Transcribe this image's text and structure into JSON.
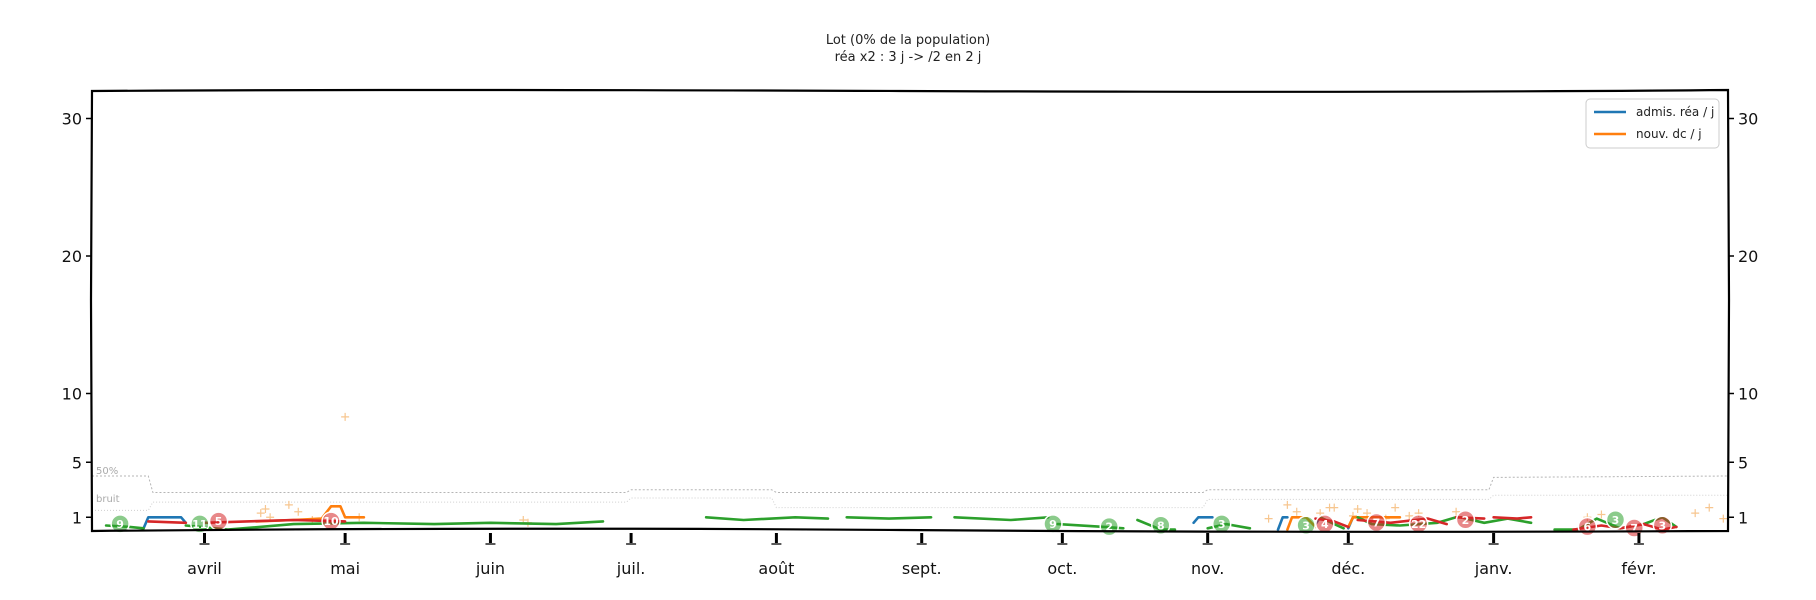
{
  "chart_data": {
    "type": "line",
    "title": "Lot (0% de la population)",
    "subtitle": "réa x2 : 3 j -> /2 en 2 j",
    "ylim": [
      0,
      32
    ],
    "yticks": [
      1,
      5,
      10,
      20,
      30
    ],
    "x_range": [
      "2020-03-08",
      "2021-02-20"
    ],
    "months": [
      {
        "label": "avril",
        "date": "2020-04-01"
      },
      {
        "label": "mai",
        "date": "2020-05-01"
      },
      {
        "label": "juin",
        "date": "2020-06-01"
      },
      {
        "label": "juil.",
        "date": "2020-07-01"
      },
      {
        "label": "août",
        "date": "2020-08-01"
      },
      {
        "label": "sept.",
        "date": "2020-09-01"
      },
      {
        "label": "oct.",
        "date": "2020-10-01"
      },
      {
        "label": "nov.",
        "date": "2020-11-01"
      },
      {
        "label": "déc.",
        "date": "2020-12-01"
      },
      {
        "label": "janv.",
        "date": "2021-01-01"
      },
      {
        "label": "févr.",
        "date": "2021-02-01"
      }
    ],
    "legend_position": "top-right",
    "legend": [
      {
        "label": "admis. réa / j",
        "color": "#1f77b4"
      },
      {
        "label": "nouv. dc / j",
        "color": "#ff7f0e"
      }
    ],
    "reference_labels": {
      "p50": "50%",
      "noise": "bruit"
    },
    "series": [
      {
        "name": "admis. réa / j",
        "color": "#1f77b4",
        "segments": [
          [
            [
              "2020-03-19",
              0.2
            ],
            [
              "2020-03-20",
              1
            ],
            [
              "2020-03-27",
              1
            ],
            [
              "2020-03-28",
              0.6
            ]
          ],
          [
            [
              "2020-10-29",
              0.6
            ],
            [
              "2020-10-30",
              1
            ],
            [
              "2020-11-02",
              1
            ]
          ],
          [
            [
              "2020-11-16",
              0.1
            ],
            [
              "2020-11-17",
              1
            ],
            [
              "2020-11-18",
              1
            ]
          ],
          [
            [
              "2020-11-24",
              0.5
            ],
            [
              "2020-11-25",
              1
            ]
          ],
          [
            [
              "2020-12-01",
              0.2
            ],
            [
              "2020-12-02",
              1
            ]
          ]
        ]
      },
      {
        "name": "nouv. dc / j",
        "color": "#ff7f0e",
        "segments": [
          [
            [
              "2020-04-12",
              0.7
            ],
            [
              "2020-04-20",
              0.8
            ],
            [
              "2020-04-26",
              0.9
            ],
            [
              "2020-04-28",
              1.8
            ],
            [
              "2020-04-30",
              1.8
            ],
            [
              "2020-05-01",
              1
            ],
            [
              "2020-05-05",
              1
            ]
          ],
          [
            [
              "2020-11-18",
              0.1
            ],
            [
              "2020-11-19",
              1
            ],
            [
              "2020-11-22",
              1
            ],
            [
              "2020-11-24",
              0.3
            ]
          ],
          [
            [
              "2020-12-01",
              0.3
            ],
            [
              "2020-12-02",
              1
            ],
            [
              "2020-12-06",
              1
            ],
            [
              "2020-12-12",
              1
            ]
          ]
        ]
      },
      {
        "color": "#2ca02c",
        "segments": [
          [
            [
              "2020-03-11",
              0.4
            ],
            [
              "2020-03-16",
              0.3
            ],
            [
              "2020-03-19",
              0.2
            ]
          ],
          [
            [
              "2020-03-28",
              0.4
            ],
            [
              "2020-04-06",
              0.1
            ],
            [
              "2020-04-20",
              0.5
            ],
            [
              "2020-05-05",
              0.6
            ],
            [
              "2020-05-20",
              0.5
            ],
            [
              "2020-06-01",
              0.6
            ],
            [
              "2020-06-15",
              0.5
            ],
            [
              "2020-06-25",
              0.7
            ]
          ],
          [
            [
              "2020-07-17",
              1
            ],
            [
              "2020-07-25",
              0.8
            ],
            [
              "2020-08-05",
              1
            ],
            [
              "2020-08-12",
              0.9
            ]
          ],
          [
            [
              "2020-08-16",
              1
            ],
            [
              "2020-08-25",
              0.9
            ],
            [
              "2020-09-03",
              1
            ]
          ],
          [
            [
              "2020-09-08",
              1
            ],
            [
              "2020-09-20",
              0.8
            ],
            [
              "2020-09-28",
              1
            ]
          ],
          [
            [
              "2020-09-30",
              0.5
            ],
            [
              "2020-10-10",
              0.3
            ],
            [
              "2020-10-14",
              0.2
            ]
          ],
          [
            [
              "2020-10-17",
              0.8
            ],
            [
              "2020-10-22",
              0.1
            ],
            [
              "2020-10-25",
              0.1
            ]
          ],
          [
            [
              "2020-11-01",
              0.2
            ],
            [
              "2020-11-05",
              0.5
            ],
            [
              "2020-11-10",
              0.2
            ]
          ],
          [
            [
              "2020-11-25",
              1
            ],
            [
              "2020-11-28",
              0.5
            ],
            [
              "2020-11-30",
              0.2
            ]
          ],
          [
            [
              "2020-12-03",
              1
            ],
            [
              "2020-12-06",
              0.5
            ],
            [
              "2020-12-12",
              0.4
            ],
            [
              "2020-12-20",
              0.6
            ],
            [
              "2020-12-24",
              1
            ]
          ],
          [
            [
              "2020-12-25",
              1
            ],
            [
              "2020-12-30",
              0.6
            ],
            [
              "2021-01-04",
              0.9
            ],
            [
              "2021-01-09",
              0.6
            ]
          ],
          [
            [
              "2021-01-14",
              0.1
            ],
            [
              "2021-01-19",
              0.1
            ],
            [
              "2021-01-23",
              0.9
            ],
            [
              "2021-01-28",
              0.2
            ],
            [
              "2021-02-02",
              0.5
            ],
            [
              "2021-02-06",
              1
            ],
            [
              "2021-02-09",
              0.3
            ]
          ]
        ]
      },
      {
        "color": "#d62728",
        "segments": [
          [
            [
              "2020-03-20",
              0.7
            ],
            [
              "2020-03-28",
              0.6
            ]
          ],
          [
            [
              "2020-04-01",
              0.6
            ],
            [
              "2020-04-10",
              0.7
            ],
            [
              "2020-04-20",
              0.8
            ],
            [
              "2020-05-01",
              0.7
            ]
          ],
          [
            [
              "2020-11-24",
              0.9
            ],
            [
              "2020-11-28",
              0.7
            ],
            [
              "2020-12-01",
              0.3
            ]
          ],
          [
            [
              "2020-12-03",
              0.8
            ],
            [
              "2020-12-10",
              0.6
            ],
            [
              "2020-12-18",
              0.9
            ],
            [
              "2020-12-22",
              0.5
            ]
          ],
          [
            [
              "2020-12-24",
              1
            ],
            [
              "2020-12-30",
              0.9
            ]
          ],
          [
            [
              "2021-01-01",
              1
            ],
            [
              "2021-01-06",
              0.9
            ],
            [
              "2021-01-09",
              1
            ]
          ],
          [
            [
              "2021-01-18",
              0.1
            ],
            [
              "2021-01-24",
              0.4
            ],
            [
              "2021-01-28",
              0.2
            ],
            [
              "2021-02-02",
              0.5
            ],
            [
              "2021-02-06",
              0.1
            ],
            [
              "2021-02-09",
              0.3
            ]
          ]
        ]
      }
    ],
    "reference_lines": {
      "p50": [
        [
          "2020-03-08",
          4.0
        ],
        [
          "2020-03-20",
          4.0
        ],
        [
          "2020-03-21",
          2.8
        ],
        [
          "2020-06-30",
          2.8
        ],
        [
          "2020-07-01",
          3.0
        ],
        [
          "2020-07-31",
          3.0
        ],
        [
          "2020-08-01",
          2.8
        ],
        [
          "2020-10-31",
          2.8
        ],
        [
          "2020-11-01",
          3.0
        ],
        [
          "2020-12-31",
          3.0
        ],
        [
          "2021-01-01",
          3.9
        ],
        [
          "2021-02-20",
          4.0
        ]
      ],
      "noise": [
        [
          "2020-03-08",
          1.5
        ],
        [
          "2020-03-20",
          1.5
        ],
        [
          "2020-03-21",
          2.1
        ],
        [
          "2020-06-30",
          2.1
        ],
        [
          "2020-07-01",
          2.4
        ],
        [
          "2020-07-31",
          2.4
        ],
        [
          "2020-08-01",
          1.7
        ],
        [
          "2020-10-31",
          1.7
        ],
        [
          "2020-11-01",
          2.3
        ],
        [
          "2020-12-31",
          2.3
        ],
        [
          "2021-01-01",
          2.6
        ],
        [
          "2021-02-20",
          2.6
        ]
      ]
    },
    "crosses": [
      [
        "2020-04-13",
        1.3
      ],
      [
        "2020-04-14",
        1.6
      ],
      [
        "2020-04-15",
        1.0
      ],
      [
        "2020-04-19",
        1.9
      ],
      [
        "2020-04-21",
        1.4
      ],
      [
        "2020-04-24",
        0.8
      ],
      [
        "2020-05-01",
        8.3
      ],
      [
        "2020-05-04",
        1.0
      ],
      [
        "2020-06-08",
        0.8
      ],
      [
        "2020-06-09",
        0.6
      ],
      [
        "2020-11-14",
        0.9
      ],
      [
        "2020-11-18",
        1.9
      ],
      [
        "2020-11-20",
        1.4
      ],
      [
        "2020-11-25",
        1.3
      ],
      [
        "2020-11-27",
        1.7
      ],
      [
        "2020-11-28",
        1.7
      ],
      [
        "2020-12-02",
        1.1
      ],
      [
        "2020-12-03",
        1.6
      ],
      [
        "2020-12-05",
        1.3
      ],
      [
        "2020-12-09",
        0.9
      ],
      [
        "2020-12-11",
        1.7
      ],
      [
        "2020-12-14",
        1.1
      ],
      [
        "2020-12-16",
        1.3
      ],
      [
        "2020-12-24",
        1.4
      ],
      [
        "2021-01-21",
        1.0
      ],
      [
        "2021-01-24",
        1.2
      ],
      [
        "2021-02-13",
        1.3
      ],
      [
        "2021-02-16",
        1.7
      ],
      [
        "2021-02-19",
        0.9
      ]
    ],
    "markers": [
      {
        "date": "2020-03-14",
        "y": 0.3,
        "label": "9",
        "color": "#2ca02c"
      },
      {
        "date": "2020-03-31",
        "y": 0.3,
        "label": "11",
        "color": "#2ca02c"
      },
      {
        "date": "2020-04-04",
        "y": 0.5,
        "label": "5",
        "color": "#d62728"
      },
      {
        "date": "2020-04-28",
        "y": 0.5,
        "label": "10",
        "color": "#d62728"
      },
      {
        "date": "2020-09-29",
        "y": 0.3,
        "label": "9",
        "color": "#2ca02c"
      },
      {
        "date": "2020-10-11",
        "y": 0.1,
        "label": "2",
        "color": "#2ca02c"
      },
      {
        "date": "2020-10-22",
        "y": 0.2,
        "label": "8",
        "color": "#2ca02c"
      },
      {
        "date": "2020-11-04",
        "y": 0.3,
        "label": "3",
        "color": "#2ca02c"
      },
      {
        "date": "2020-11-22",
        "y": 0.2,
        "label": "3",
        "color": "#2ca02c"
      },
      {
        "date": "2020-11-26",
        "y": 0.3,
        "label": "4",
        "color": "#d62728"
      },
      {
        "date": "2020-12-07",
        "y": 0.4,
        "label": "7",
        "color": "#d62728"
      },
      {
        "date": "2020-12-16",
        "y": 0.3,
        "label": "22",
        "color": "#d62728"
      },
      {
        "date": "2020-12-26",
        "y": 0.6,
        "label": "2",
        "color": "#d62728"
      },
      {
        "date": "2021-01-21",
        "y": 0.1,
        "label": "6",
        "color": "#d62728"
      },
      {
        "date": "2021-01-27",
        "y": 0.6,
        "label": "3",
        "color": "#2ca02c"
      },
      {
        "date": "2021-01-31",
        "y": 0.0,
        "label": "7",
        "color": "#d62728"
      },
      {
        "date": "2021-02-06",
        "y": 0.2,
        "label": "3",
        "color": "#d62728"
      }
    ]
  }
}
